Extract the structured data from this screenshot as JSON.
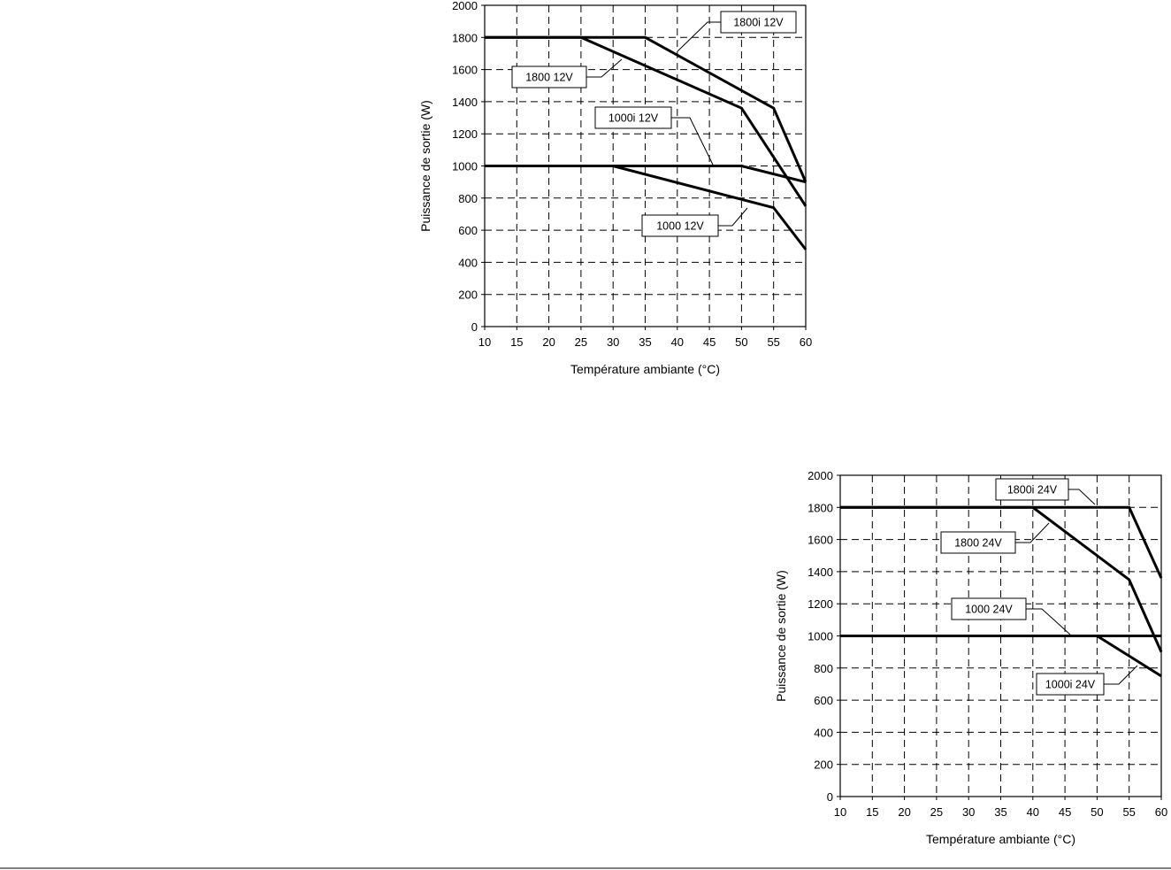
{
  "chart_data": [
    {
      "type": "line",
      "xlabel": "Température ambiante (°C)",
      "ylabel": "Puissance de sortie (W)",
      "xlim": [
        10,
        60
      ],
      "ylim": [
        0,
        2000
      ],
      "x_ticks": [
        10,
        15,
        20,
        25,
        30,
        35,
        40,
        45,
        50,
        55,
        60
      ],
      "y_ticks": [
        0,
        200,
        400,
        600,
        800,
        1000,
        1200,
        1400,
        1600,
        1800,
        2000
      ],
      "grid": true,
      "series": [
        {
          "name": "1800i 12V",
          "x": [
            10,
            35,
            55,
            60
          ],
          "y": [
            1800,
            1800,
            1360,
            900
          ]
        },
        {
          "name": "1800 12V",
          "x": [
            10,
            25,
            50,
            60
          ],
          "y": [
            1800,
            1800,
            1360,
            750
          ]
        },
        {
          "name": "1000i 12V",
          "x": [
            10,
            50,
            60
          ],
          "y": [
            1000,
            1000,
            900
          ]
        },
        {
          "name": "1000 12V",
          "x": [
            10,
            30,
            55,
            60
          ],
          "y": [
            1000,
            1000,
            740,
            480
          ]
        }
      ]
    },
    {
      "type": "line",
      "xlabel": "Température ambiante (°C)",
      "ylabel": "Puissance de sortie (W)",
      "xlim": [
        10,
        60
      ],
      "ylim": [
        0,
        2000
      ],
      "x_ticks": [
        10,
        15,
        20,
        25,
        30,
        35,
        40,
        45,
        50,
        55,
        60
      ],
      "y_ticks": [
        0,
        200,
        400,
        600,
        800,
        1000,
        1200,
        1400,
        1600,
        1800,
        2000
      ],
      "grid": true,
      "series": [
        {
          "name": "1800i 24V",
          "x": [
            10,
            55,
            60
          ],
          "y": [
            1800,
            1800,
            1360
          ]
        },
        {
          "name": "1800 24V",
          "x": [
            10,
            40,
            55,
            60
          ],
          "y": [
            1800,
            1800,
            1350,
            900
          ]
        },
        {
          "name": "1000 24V",
          "x": [
            10,
            60
          ],
          "y": [
            1000,
            1000
          ]
        },
        {
          "name": "1000i 24V",
          "x": [
            10,
            50,
            60
          ],
          "y": [
            1000,
            1000,
            750
          ]
        }
      ]
    }
  ]
}
